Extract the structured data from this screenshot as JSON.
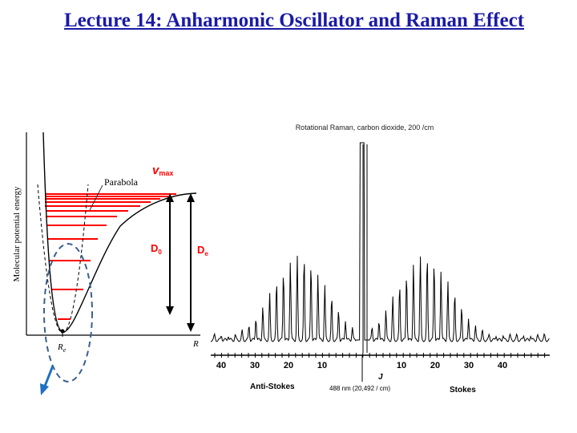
{
  "slide": {
    "title": "Lecture 14: Anharmonic Oscillator and Raman Effect"
  },
  "potential_figure": {
    "y_axis_label": "Molecular potential energy",
    "x_axis_label": "R",
    "re_label": "R",
    "re_subscript": "e",
    "parabola_label": "Parabola",
    "vmax_label": "v",
    "vmax_subscript": "max",
    "d0_label": "D",
    "d0_subscript": "0",
    "de_label": "D",
    "de_subscript": "e",
    "level_color": "#ff0000",
    "arrow_color": "#1f6fc4",
    "ellipse_color": "#3a5f8f"
  },
  "raman_figure": {
    "title": "Rotational Raman, carbon dioxide, 200 /cm",
    "anti_stokes_ticks": [
      "40",
      "30",
      "20",
      "10"
    ],
    "stokes_ticks": [
      "10",
      "20",
      "30",
      "40"
    ],
    "center_label": "J",
    "anti_stokes_label": "Anti-Stokes",
    "stokes_label": "Stokes",
    "laser_label": "488 nm (20,492 / cm)"
  }
}
